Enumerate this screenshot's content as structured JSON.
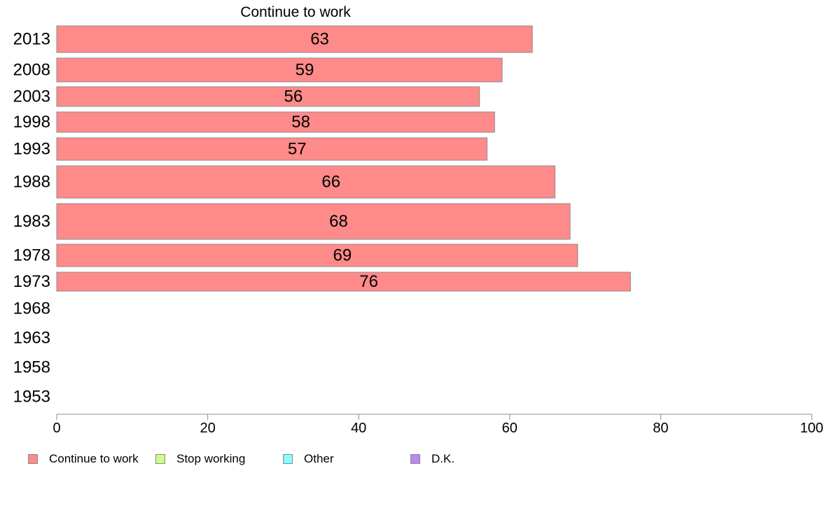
{
  "chart_data": {
    "type": "bar",
    "orientation": "horizontal",
    "title": "Continue to work",
    "categories": [
      "2013",
      "2008",
      "2003",
      "1998",
      "1993",
      "1988",
      "1983",
      "1978",
      "1973",
      "1968",
      "1963",
      "1958",
      "1953"
    ],
    "series": [
      {
        "name": "Continue to work",
        "color": "#ff8a8a",
        "values": [
          63,
          59,
          56,
          58,
          57,
          66,
          68,
          69,
          76,
          null,
          null,
          null,
          null
        ],
        "labels": [
          "63",
          "59",
          "56",
          "58",
          "57",
          "66",
          "68",
          "69",
          "76",
          "",
          "",
          "",
          ""
        ]
      }
    ],
    "xlim": [
      0,
      100
    ],
    "xticks": [
      "0",
      "20",
      "40",
      "60",
      "80",
      "100"
    ],
    "grid": false,
    "legend_position": "bottom-left"
  },
  "legend": [
    {
      "label": "Continue to work",
      "color": "#ff8a8a"
    },
    {
      "label": "Stop working",
      "color": "#ccff88"
    },
    {
      "label": "Other",
      "color": "#88ffff"
    },
    {
      "label": "D.K.",
      "color": "#bb88ee"
    }
  ]
}
